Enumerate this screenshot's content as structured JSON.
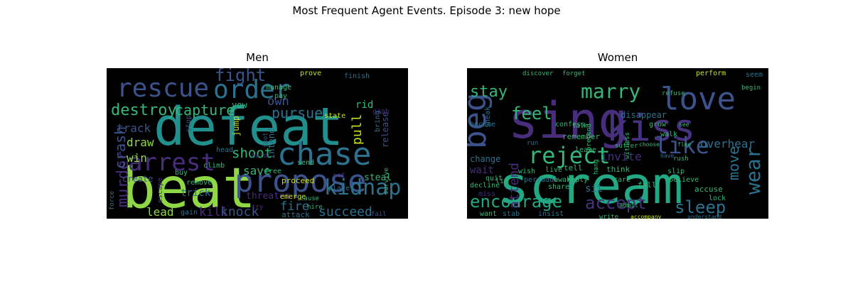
{
  "figure": {
    "title": "Most Frequent Agent Events. Episode 3: new hope"
  },
  "palette": {
    "background": "#000000",
    "lime": "#8fd744",
    "teal": "#21908d",
    "green": "#35b779",
    "mint": "#22a884",
    "blue": "#3b528b",
    "steel": "#2c728e",
    "purple": "#472d7b",
    "violet": "#46327e",
    "yellow": "#c8e020"
  },
  "chart_data": [
    {
      "type": "wordcloud",
      "title": "Men",
      "words": [
        {
          "text": "beat",
          "size": 78,
          "color": "lime"
        },
        {
          "text": "defeat",
          "size": 74,
          "color": "teal"
        },
        {
          "text": "propose",
          "size": 44,
          "color": "blue"
        },
        {
          "text": "chase",
          "size": 44,
          "color": "steel"
        },
        {
          "text": "rescue",
          "size": 36,
          "color": "blue"
        },
        {
          "text": "order",
          "size": 36,
          "color": "steel"
        },
        {
          "text": "arrest",
          "size": 34,
          "color": "purple"
        },
        {
          "text": "kidnap",
          "size": 30,
          "color": "steel"
        },
        {
          "text": "fight",
          "size": 24,
          "color": "blue"
        },
        {
          "text": "murder",
          "size": 22,
          "color": "purple"
        },
        {
          "text": "destroy",
          "size": 22,
          "color": "green"
        },
        {
          "text": "capture",
          "size": 20,
          "color": "green"
        },
        {
          "text": "crash",
          "size": 20,
          "color": "blue"
        },
        {
          "text": "pursue",
          "size": 20,
          "color": "steel"
        },
        {
          "text": "shoot",
          "size": 19,
          "color": "green"
        },
        {
          "text": "knock",
          "size": 18,
          "color": "blue"
        },
        {
          "text": "succeed",
          "size": 18,
          "color": "steel"
        },
        {
          "text": "pull",
          "size": 18,
          "color": "yellow"
        },
        {
          "text": "kill",
          "size": 17,
          "color": "purple"
        },
        {
          "text": "own",
          "size": 17,
          "color": "blue"
        },
        {
          "text": "fire",
          "size": 17,
          "color": "steel"
        },
        {
          "text": "track",
          "size": 16,
          "color": "blue"
        },
        {
          "text": "draw",
          "size": 16,
          "color": "lime"
        },
        {
          "text": "lead",
          "size": 16,
          "color": "lime"
        },
        {
          "text": "save",
          "size": 16,
          "color": "green"
        },
        {
          "text": "win",
          "size": 16,
          "color": "lime"
        },
        {
          "text": "trick",
          "size": 14,
          "color": "steel"
        },
        {
          "text": "threaten",
          "size": 13,
          "color": "purple"
        },
        {
          "text": "rid",
          "size": 14,
          "color": "green"
        },
        {
          "text": "steal",
          "size": 13,
          "color": "green"
        },
        {
          "text": "jump",
          "size": 12,
          "color": "yellow"
        },
        {
          "text": "release",
          "size": 12,
          "color": "blue"
        },
        {
          "text": "vow",
          "size": 12,
          "color": "green"
        },
        {
          "text": "create",
          "size": 12,
          "color": "blue"
        },
        {
          "text": "intend",
          "size": 12,
          "color": "steel"
        },
        {
          "text": "attack",
          "size": 11,
          "color": "steel"
        },
        {
          "text": "proceed",
          "size": 11,
          "color": "yellow"
        },
        {
          "text": "emerge",
          "size": 10,
          "color": "yellow"
        },
        {
          "text": "grab",
          "size": 10,
          "color": "purple"
        },
        {
          "text": "bring",
          "size": 10,
          "color": "steel"
        },
        {
          "text": "state",
          "size": 10,
          "color": "yellow"
        },
        {
          "text": "set",
          "size": 10,
          "color": "purple"
        },
        {
          "text": "place",
          "size": 10,
          "color": "steel"
        },
        {
          "text": "send",
          "size": 10,
          "color": "green"
        },
        {
          "text": "free",
          "size": 10,
          "color": "green"
        },
        {
          "text": "prove",
          "size": 10,
          "color": "yellow"
        },
        {
          "text": "finish",
          "size": 10,
          "color": "steel"
        },
        {
          "text": "manage",
          "size": 10,
          "color": "green"
        },
        {
          "text": "pay",
          "size": 10,
          "color": "green"
        },
        {
          "text": "gain",
          "size": 10,
          "color": "steel"
        },
        {
          "text": "remove",
          "size": 10,
          "color": "green"
        },
        {
          "text": "buy",
          "size": 10,
          "color": "green"
        },
        {
          "text": "climb",
          "size": 10,
          "color": "green"
        },
        {
          "text": "head",
          "size": 10,
          "color": "steel"
        },
        {
          "text": "stop",
          "size": 10,
          "color": "blue"
        },
        {
          "text": "escape",
          "size": 10,
          "color": "purple"
        },
        {
          "text": "force",
          "size": 9,
          "color": "steel"
        },
        {
          "text": "survive",
          "size": 9,
          "color": "green"
        },
        {
          "text": "cause",
          "size": 9,
          "color": "green"
        },
        {
          "text": "fail",
          "size": 9,
          "color": "blue"
        },
        {
          "text": "hire",
          "size": 9,
          "color": "green"
        },
        {
          "text": "spot",
          "size": 9,
          "color": "blue"
        },
        {
          "text": "hold",
          "size": 9,
          "color": "purple"
        },
        {
          "text": "try",
          "size": 9,
          "color": "purple"
        }
      ]
    },
    {
      "type": "wordcloud",
      "title": "Women",
      "words": [
        {
          "text": "scream",
          "size": 72,
          "color": "mint"
        },
        {
          "text": "sing",
          "size": 70,
          "color": "purple"
        },
        {
          "text": "kiss",
          "size": 52,
          "color": "violet"
        },
        {
          "text": "love",
          "size": 44,
          "color": "blue"
        },
        {
          "text": "beg",
          "size": 44,
          "color": "blue"
        },
        {
          "text": "reject",
          "size": 32,
          "color": "green"
        },
        {
          "text": "like",
          "size": 32,
          "color": "blue"
        },
        {
          "text": "marry",
          "size": 28,
          "color": "green"
        },
        {
          "text": "wear",
          "size": 28,
          "color": "steel"
        },
        {
          "text": "encourage",
          "size": 24,
          "color": "mint"
        },
        {
          "text": "accept",
          "size": 24,
          "color": "violet"
        },
        {
          "text": "sleep",
          "size": 24,
          "color": "steel"
        },
        {
          "text": "feel",
          "size": 24,
          "color": "green"
        },
        {
          "text": "stay",
          "size": 22,
          "color": "green"
        },
        {
          "text": "move",
          "size": 20,
          "color": "steel"
        },
        {
          "text": "attend",
          "size": 18,
          "color": "purple"
        },
        {
          "text": "invite",
          "size": 16,
          "color": "purple"
        },
        {
          "text": "overhear",
          "size": 16,
          "color": "steel"
        },
        {
          "text": "express",
          "size": 14,
          "color": "steel"
        },
        {
          "text": "sit",
          "size": 14,
          "color": "steel"
        },
        {
          "text": "wait",
          "size": 14,
          "color": "purple"
        },
        {
          "text": "change",
          "size": 12,
          "color": "steel"
        },
        {
          "text": "accuse",
          "size": 11,
          "color": "green"
        },
        {
          "text": "perform",
          "size": 10,
          "color": "yellow"
        },
        {
          "text": "disappear",
          "size": 12,
          "color": "steel"
        },
        {
          "text": "remember",
          "size": 11,
          "color": "green"
        },
        {
          "text": "discover",
          "size": 9,
          "color": "green"
        },
        {
          "text": "forget",
          "size": 9,
          "color": "green"
        },
        {
          "text": "become",
          "size": 10,
          "color": "steel"
        },
        {
          "text": "confess",
          "size": 10,
          "color": "green"
        },
        {
          "text": "sneak",
          "size": 10,
          "color": "steel"
        },
        {
          "text": "walk",
          "size": 10,
          "color": "green"
        },
        {
          "text": "grow",
          "size": 10,
          "color": "green"
        },
        {
          "text": "refuse",
          "size": 9,
          "color": "green"
        },
        {
          "text": "seem",
          "size": 10,
          "color": "steel"
        },
        {
          "text": "begin",
          "size": 9,
          "color": "green"
        },
        {
          "text": "tell",
          "size": 11,
          "color": "green"
        },
        {
          "text": "fall",
          "size": 11,
          "color": "green"
        },
        {
          "text": "think",
          "size": 11,
          "color": "green"
        },
        {
          "text": "care",
          "size": 10,
          "color": "green"
        },
        {
          "text": "believe",
          "size": 10,
          "color": "green"
        },
        {
          "text": "slip",
          "size": 10,
          "color": "green"
        },
        {
          "text": "lock",
          "size": 10,
          "color": "green"
        },
        {
          "text": "persuade",
          "size": 10,
          "color": "steel"
        },
        {
          "text": "reply",
          "size": 10,
          "color": "green"
        },
        {
          "text": "decline",
          "size": 10,
          "color": "green"
        },
        {
          "text": "lie",
          "size": 10,
          "color": "green"
        },
        {
          "text": "miss",
          "size": 10,
          "color": "purple"
        },
        {
          "text": "want",
          "size": 10,
          "color": "green"
        },
        {
          "text": "stab",
          "size": 10,
          "color": "steel"
        },
        {
          "text": "insist",
          "size": 10,
          "color": "steel"
        },
        {
          "text": "write",
          "size": 9,
          "color": "green"
        },
        {
          "text": "admit",
          "size": 9,
          "color": "green"
        },
        {
          "text": "accompany",
          "size": 8,
          "color": "yellow"
        },
        {
          "text": "understand",
          "size": 8,
          "color": "steel"
        },
        {
          "text": "live",
          "size": 10,
          "color": "green"
        },
        {
          "text": "share",
          "size": 10,
          "color": "green"
        },
        {
          "text": "awaken",
          "size": 10,
          "color": "green"
        },
        {
          "text": "quit",
          "size": 10,
          "color": "green"
        },
        {
          "text": "wish",
          "size": 10,
          "color": "green"
        },
        {
          "text": "leave",
          "size": 10,
          "color": "green"
        },
        {
          "text": "witness",
          "size": 9,
          "color": "green"
        },
        {
          "text": "suffer",
          "size": 9,
          "color": "green"
        },
        {
          "text": "pretend",
          "size": 9,
          "color": "green"
        },
        {
          "text": "hang",
          "size": 9,
          "color": "green"
        },
        {
          "text": "run",
          "size": 9,
          "color": "steel"
        },
        {
          "text": "talk",
          "size": 9,
          "color": "green"
        },
        {
          "text": "rush",
          "size": 9,
          "color": "green"
        },
        {
          "text": "have",
          "size": 8,
          "color": "steel"
        },
        {
          "text": "choose",
          "size": 8,
          "color": "green"
        },
        {
          "text": "see",
          "size": 8,
          "color": "green"
        },
        {
          "text": "flee",
          "size": 8,
          "color": "green"
        }
      ]
    }
  ]
}
